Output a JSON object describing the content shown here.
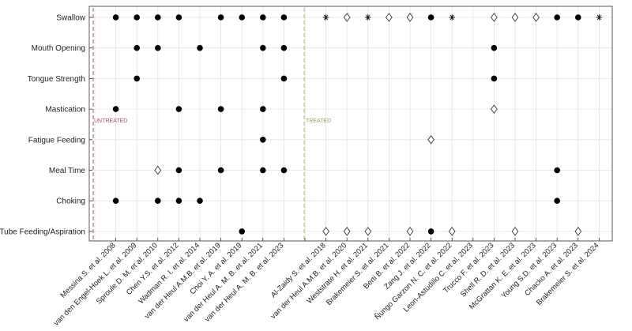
{
  "chart_data": {
    "type": "scatter",
    "title": "",
    "xlabel": "",
    "ylabel": "",
    "grid": true,
    "rows": [
      "Swallow",
      "Mouth Opening",
      "Tongue Strength",
      "Mastication",
      "Fatigue Feeding",
      "Meal Time",
      "Choking",
      "Tube Feeding/Aspiration"
    ],
    "columns": [
      "Messina S. et al. 2008",
      "van den Engel-Hoek L. et al. 2009",
      "Sproule D. M. et al. 2010",
      "Chen Y.S. et al. 2012",
      "Wadman R. I. et al. 2014",
      "van der Heul A.M.B. et al. 2019",
      "Choi Y. A. et al. 2019",
      "van der Heul A. M. B. et al. 2021",
      "van der Heul A. M. B. et al. 2023",
      "",
      "Al-Zaidy S. et al. 2018",
      "van der Heul A.M.B. et al. 2020",
      "Weststrate H. et al. 2021",
      "Brakemeier S. et al. 2021",
      "Berti B. et al. 2022",
      "Zang J. et al. 2022",
      "Ñungo Garzon N. C. et al. 2022",
      "Leon-Astudillo C. et al. 2023",
      "Trucco F. et al. 2023",
      "Shell R. D. et al. 2023",
      "McGrattan K. E. et al. 2023",
      "Young S.D. et al. 2023",
      "Chacko A. et al. 2023",
      "Brakemeier S. et al. 2024"
    ],
    "annotations": {
      "untreated": "UNTREATED",
      "treated": "TREATED"
    },
    "colors": {
      "untreated_line": "#a0506a",
      "treated_line": "#a8c078",
      "grid": "#e3e3e3",
      "marker": "#000000"
    },
    "marker_types": [
      "filled-circle",
      "open-diamond",
      "asterisk"
    ],
    "points": [
      {
        "row": 0,
        "col": 1,
        "m": "filled-circle"
      },
      {
        "row": 0,
        "col": 2,
        "m": "filled-circle"
      },
      {
        "row": 0,
        "col": 3,
        "m": "filled-circle"
      },
      {
        "row": 0,
        "col": 4,
        "m": "filled-circle"
      },
      {
        "row": 0,
        "col": 6,
        "m": "filled-circle"
      },
      {
        "row": 0,
        "col": 7,
        "m": "filled-circle"
      },
      {
        "row": 0,
        "col": 8,
        "m": "filled-circle"
      },
      {
        "row": 0,
        "col": 9,
        "m": "filled-circle"
      },
      {
        "row": 0,
        "col": 11,
        "m": "asterisk"
      },
      {
        "row": 0,
        "col": 12,
        "m": "open-diamond"
      },
      {
        "row": 0,
        "col": 13,
        "m": "asterisk"
      },
      {
        "row": 0,
        "col": 14,
        "m": "open-diamond"
      },
      {
        "row": 0,
        "col": 15,
        "m": "open-diamond"
      },
      {
        "row": 0,
        "col": 16,
        "m": "filled-circle"
      },
      {
        "row": 0,
        "col": 17,
        "m": "asterisk"
      },
      {
        "row": 0,
        "col": 19,
        "m": "open-diamond"
      },
      {
        "row": 0,
        "col": 20,
        "m": "open-diamond"
      },
      {
        "row": 0,
        "col": 21,
        "m": "open-diamond"
      },
      {
        "row": 0,
        "col": 22,
        "m": "filled-circle"
      },
      {
        "row": 0,
        "col": 23,
        "m": "filled-circle"
      },
      {
        "row": 0,
        "col": 24,
        "m": "asterisk"
      },
      {
        "row": 1,
        "col": 2,
        "m": "filled-circle"
      },
      {
        "row": 1,
        "col": 3,
        "m": "filled-circle"
      },
      {
        "row": 1,
        "col": 5,
        "m": "filled-circle"
      },
      {
        "row": 1,
        "col": 8,
        "m": "filled-circle"
      },
      {
        "row": 1,
        "col": 9,
        "m": "filled-circle"
      },
      {
        "row": 1,
        "col": 19,
        "m": "filled-circle"
      },
      {
        "row": 2,
        "col": 2,
        "m": "filled-circle"
      },
      {
        "row": 2,
        "col": 9,
        "m": "filled-circle"
      },
      {
        "row": 2,
        "col": 19,
        "m": "filled-circle"
      },
      {
        "row": 3,
        "col": 1,
        "m": "filled-circle"
      },
      {
        "row": 3,
        "col": 4,
        "m": "filled-circle"
      },
      {
        "row": 3,
        "col": 6,
        "m": "filled-circle"
      },
      {
        "row": 3,
        "col": 8,
        "m": "filled-circle"
      },
      {
        "row": 3,
        "col": 19,
        "m": "open-diamond"
      },
      {
        "row": 4,
        "col": 8,
        "m": "filled-circle"
      },
      {
        "row": 4,
        "col": 16,
        "m": "open-diamond"
      },
      {
        "row": 5,
        "col": 3,
        "m": "open-diamond"
      },
      {
        "row": 5,
        "col": 4,
        "m": "filled-circle"
      },
      {
        "row": 5,
        "col": 6,
        "m": "filled-circle"
      },
      {
        "row": 5,
        "col": 8,
        "m": "filled-circle"
      },
      {
        "row": 5,
        "col": 9,
        "m": "filled-circle"
      },
      {
        "row": 5,
        "col": 22,
        "m": "filled-circle"
      },
      {
        "row": 6,
        "col": 1,
        "m": "filled-circle"
      },
      {
        "row": 6,
        "col": 3,
        "m": "filled-circle"
      },
      {
        "row": 6,
        "col": 4,
        "m": "filled-circle"
      },
      {
        "row": 6,
        "col": 5,
        "m": "filled-circle"
      },
      {
        "row": 6,
        "col": 22,
        "m": "filled-circle"
      },
      {
        "row": 7,
        "col": 7,
        "m": "filled-circle"
      },
      {
        "row": 7,
        "col": 11,
        "m": "open-diamond"
      },
      {
        "row": 7,
        "col": 12,
        "m": "open-diamond"
      },
      {
        "row": 7,
        "col": 13,
        "m": "open-diamond"
      },
      {
        "row": 7,
        "col": 15,
        "m": "open-diamond"
      },
      {
        "row": 7,
        "col": 16,
        "m": "filled-circle"
      },
      {
        "row": 7,
        "col": 17,
        "m": "open-diamond"
      },
      {
        "row": 7,
        "col": 20,
        "m": "open-diamond"
      },
      {
        "row": 7,
        "col": 23,
        "m": "open-diamond"
      }
    ]
  }
}
